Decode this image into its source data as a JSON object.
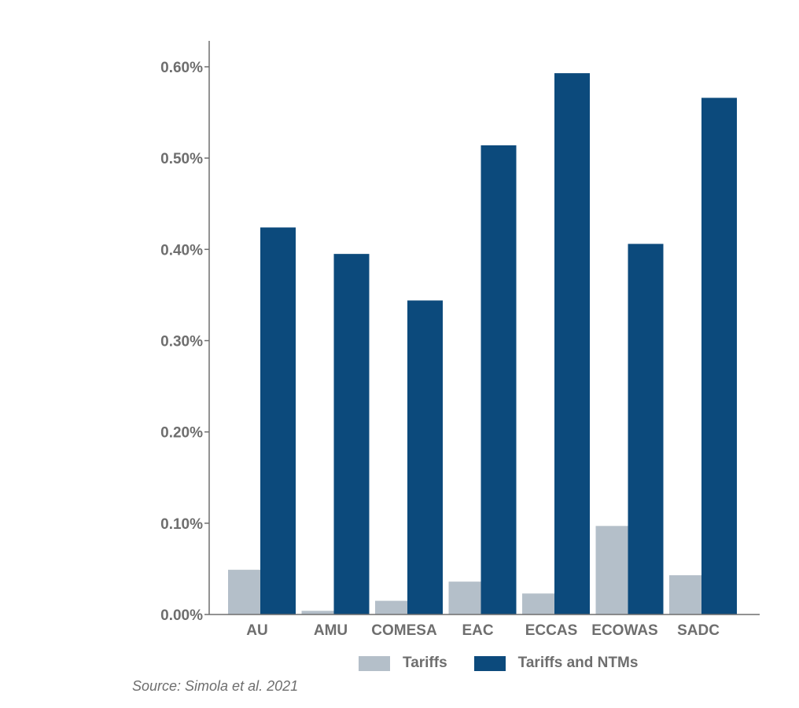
{
  "chart_data": {
    "type": "bar",
    "categories": [
      "AU",
      "AMU",
      "COMESA",
      "EAC",
      "ECCAS",
      "ECOWAS",
      "SADC"
    ],
    "series": [
      {
        "name": "Tariffs",
        "color": "#b4bfc9",
        "values": [
          0.049,
          0.004,
          0.015,
          0.036,
          0.023,
          0.097,
          0.043
        ]
      },
      {
        "name": "Tariffs and NTMs",
        "color": "#0c4a7c",
        "values": [
          0.424,
          0.395,
          0.344,
          0.514,
          0.593,
          0.406,
          0.566
        ]
      }
    ],
    "ylim": [
      0,
      0.6
    ],
    "yticks": [
      "0.00%",
      "0.10%",
      "0.20%",
      "0.30%",
      "0.40%",
      "0.50%",
      "0.60%"
    ],
    "ytick_values": [
      0,
      0.1,
      0.2,
      0.3,
      0.4,
      0.5,
      0.6
    ],
    "title": "",
    "xlabel": "",
    "ylabel": "",
    "grid": false,
    "legend_position": "bottom"
  },
  "source_note": "Source: Simola et al. 2021"
}
